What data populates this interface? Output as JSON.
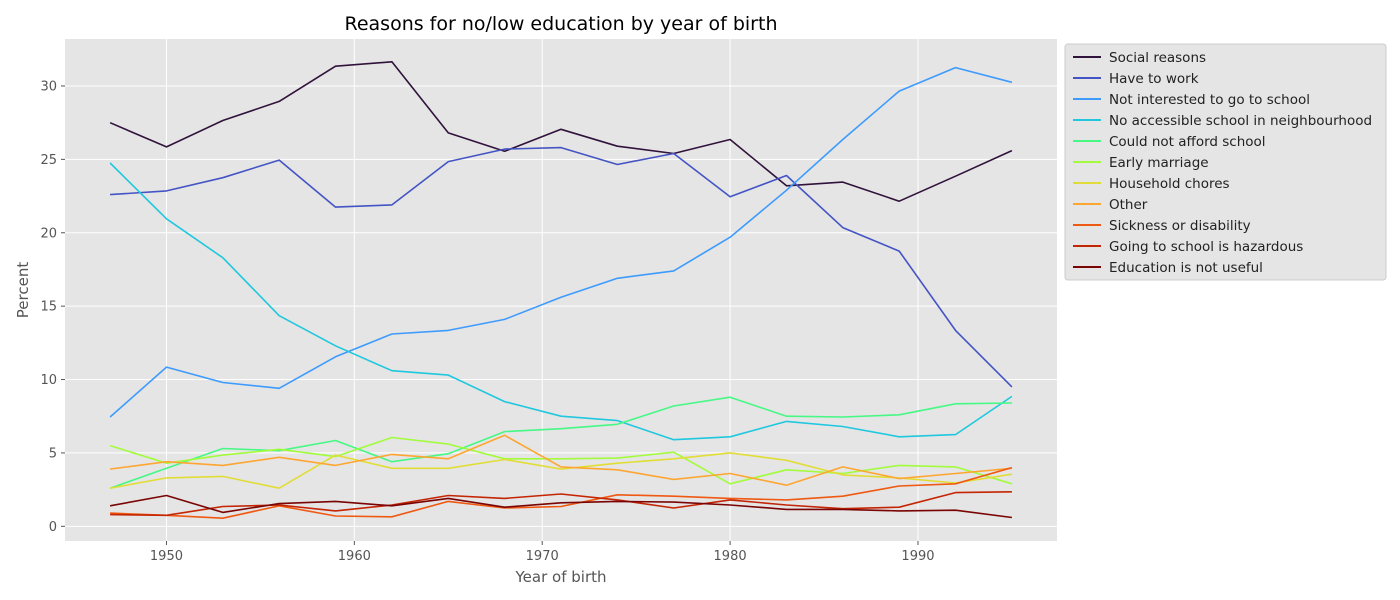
{
  "chart_data": {
    "type": "line",
    "title": "Reasons for no/low education by year of birth",
    "xlabel": "Year of birth",
    "ylabel": "Percent",
    "xlim": [
      1944.6,
      1997.4
    ],
    "ylim": [
      -1.0,
      33.2
    ],
    "xticks": [
      1950,
      1960,
      1970,
      1980,
      1990
    ],
    "yticks": [
      0,
      5,
      10,
      15,
      20,
      25,
      30
    ],
    "grid": true,
    "legend_position": "upper-right-outside",
    "x": [
      1947,
      1950,
      1953,
      1956,
      1959,
      1962,
      1965,
      1968,
      1971,
      1974,
      1977,
      1980,
      1983,
      1986,
      1989,
      1992,
      1995
    ],
    "series": [
      {
        "name": "Social reasons",
        "color": "#30123b",
        "values": [
          27.5,
          25.85,
          27.65,
          28.95,
          31.35,
          31.65,
          26.8,
          25.55,
          27.05,
          25.9,
          25.4,
          26.35,
          23.2,
          23.45,
          22.15,
          23.85,
          25.6
        ]
      },
      {
        "name": "Have to work",
        "color": "#4454c4",
        "values": [
          22.6,
          22.85,
          23.75,
          24.95,
          21.75,
          21.9,
          24.85,
          25.7,
          25.8,
          24.65,
          25.4,
          22.45,
          23.9,
          20.35,
          18.75,
          13.35,
          9.5
        ]
      },
      {
        "name": "Not interested to go to school",
        "color": "#3e9bfe",
        "values": [
          7.45,
          10.85,
          9.8,
          9.4,
          11.55,
          13.1,
          13.35,
          14.1,
          15.6,
          16.9,
          17.4,
          19.7,
          22.9,
          26.35,
          29.65,
          31.25,
          30.25
        ]
      },
      {
        "name": "No accessible school in neighbourhood",
        "color": "#1fc8de",
        "values": [
          24.75,
          20.95,
          18.3,
          14.35,
          12.3,
          10.6,
          10.3,
          8.5,
          7.5,
          7.2,
          5.9,
          6.1,
          7.15,
          6.8,
          6.1,
          6.25,
          8.85
        ]
      },
      {
        "name": "Could not afford school",
        "color": "#46f884",
        "values": [
          2.6,
          3.95,
          5.3,
          5.15,
          5.85,
          4.4,
          4.95,
          6.45,
          6.65,
          6.95,
          8.2,
          8.8,
          7.5,
          7.45,
          7.6,
          8.35,
          8.4
        ]
      },
      {
        "name": "Early marriage",
        "color": "#a2fc3c",
        "values": [
          5.5,
          4.3,
          4.85,
          5.25,
          4.75,
          6.05,
          5.6,
          4.6,
          4.6,
          4.65,
          5.05,
          2.9,
          3.85,
          3.6,
          4.15,
          4.05,
          2.9
        ]
      },
      {
        "name": "Household chores",
        "color": "#e1dd37",
        "values": [
          2.6,
          3.3,
          3.4,
          2.6,
          4.85,
          3.95,
          3.95,
          4.55,
          3.9,
          4.3,
          4.6,
          5.0,
          4.5,
          3.5,
          3.3,
          2.95,
          3.55
        ]
      },
      {
        "name": "Other",
        "color": "#fea632",
        "values": [
          3.9,
          4.4,
          4.15,
          4.7,
          4.15,
          4.9,
          4.6,
          6.2,
          4.05,
          3.85,
          3.2,
          3.6,
          2.8,
          4.05,
          3.25,
          3.6,
          3.95
        ]
      },
      {
        "name": "Sickness or disability",
        "color": "#ef5911",
        "values": [
          0.9,
          0.75,
          0.55,
          1.4,
          0.7,
          0.65,
          1.7,
          1.25,
          1.35,
          2.15,
          2.05,
          1.9,
          1.8,
          2.05,
          2.75,
          2.9,
          4.0
        ]
      },
      {
        "name": "Going to school is hazardous",
        "color": "#c42503",
        "values": [
          0.8,
          0.75,
          1.35,
          1.45,
          1.05,
          1.45,
          2.1,
          1.9,
          2.2,
          1.8,
          1.25,
          1.8,
          1.45,
          1.2,
          1.3,
          2.3,
          2.35
        ]
      },
      {
        "name": "Education is not useful",
        "color": "#7a0403",
        "values": [
          1.4,
          2.1,
          0.95,
          1.55,
          1.7,
          1.4,
          1.9,
          1.3,
          1.6,
          1.7,
          1.65,
          1.45,
          1.15,
          1.15,
          1.05,
          1.1,
          0.6
        ]
      }
    ]
  }
}
